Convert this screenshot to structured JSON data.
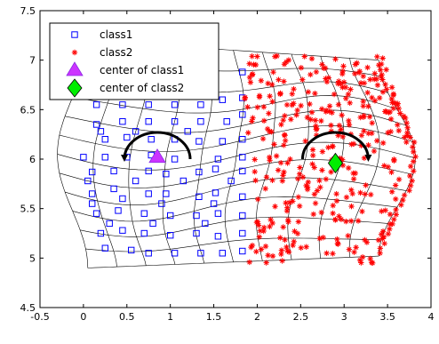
{
  "chart_data": {
    "type": "scatter",
    "title": "",
    "xlabel": "",
    "ylabel": "",
    "xlim": [
      -0.5,
      4
    ],
    "ylim": [
      4.5,
      7.5
    ],
    "xticks": [
      "-0.5",
      "0",
      "0.5",
      "1",
      "1.5",
      "2",
      "2.5",
      "3",
      "3.5",
      "4"
    ],
    "yticks": [
      "4.5",
      "5",
      "5.5",
      "6",
      "6.5",
      "7",
      "7.5"
    ],
    "legend_position": "top-left",
    "legend": [
      {
        "label": "class1",
        "marker": "square",
        "color": "#0000ff"
      },
      {
        "label": "class2",
        "marker": "asterisk",
        "color": "#ff0000"
      },
      {
        "label": "center of class1",
        "marker": "triangle",
        "color": "#cc33ff"
      },
      {
        "label": "center of class2",
        "marker": "diamond",
        "color": "#00ee00"
      }
    ],
    "centers": {
      "class1": {
        "x": 0.85,
        "y": 6.02
      },
      "class2": {
        "x": 2.9,
        "y": 5.96
      }
    },
    "rotation_arrows": [
      {
        "cx": 0.85,
        "direction": "counterclockwise"
      },
      {
        "cx": 2.9,
        "direction": "clockwise"
      }
    ],
    "deformed_grid": true,
    "class1_points": [
      [
        0.1,
        5.87
      ],
      [
        0.35,
        5.88
      ],
      [
        0.75,
        5.88
      ],
      [
        0.95,
        5.85
      ],
      [
        1.33,
        5.87
      ],
      [
        1.52,
        5.9
      ],
      [
        1.83,
        5.88
      ],
      [
        0.1,
        5.65
      ],
      [
        0.35,
        5.7
      ],
      [
        0.75,
        5.65
      ],
      [
        0.95,
        5.65
      ],
      [
        1.33,
        5.62
      ],
      [
        1.52,
        5.66
      ],
      [
        1.83,
        5.62
      ],
      [
        0.15,
        5.45
      ],
      [
        0.4,
        5.48
      ],
      [
        0.7,
        5.45
      ],
      [
        1.0,
        5.43
      ],
      [
        1.3,
        5.43
      ],
      [
        1.55,
        5.45
      ],
      [
        1.83,
        5.43
      ],
      [
        0.2,
        5.25
      ],
      [
        0.45,
        5.28
      ],
      [
        0.7,
        5.25
      ],
      [
        1.0,
        5.23
      ],
      [
        1.3,
        5.25
      ],
      [
        1.55,
        5.22
      ],
      [
        1.83,
        5.25
      ],
      [
        0.25,
        5.1
      ],
      [
        0.55,
        5.08
      ],
      [
        0.75,
        5.05
      ],
      [
        1.05,
        5.05
      ],
      [
        1.35,
        5.05
      ],
      [
        1.6,
        5.05
      ],
      [
        1.83,
        5.07
      ],
      [
        0.15,
        6.35
      ],
      [
        0.45,
        6.38
      ],
      [
        0.75,
        6.38
      ],
      [
        1.05,
        6.38
      ],
      [
        1.35,
        6.38
      ],
      [
        1.65,
        6.38
      ],
      [
        1.83,
        6.45
      ],
      [
        0.15,
        6.55
      ],
      [
        0.45,
        6.55
      ],
      [
        0.75,
        6.55
      ],
      [
        1.05,
        6.55
      ],
      [
        1.35,
        6.55
      ],
      [
        1.6,
        6.6
      ],
      [
        1.83,
        6.62
      ],
      [
        0.25,
        6.68
      ],
      [
        0.55,
        6.72
      ],
      [
        0.85,
        6.75
      ],
      [
        1.1,
        6.76
      ],
      [
        1.4,
        6.8
      ],
      [
        1.83,
        6.88
      ],
      [
        0.25,
        6.2
      ],
      [
        0.5,
        6.22
      ],
      [
        0.78,
        6.2
      ],
      [
        1.05,
        6.2
      ],
      [
        1.33,
        6.18
      ],
      [
        1.6,
        6.18
      ],
      [
        1.83,
        6.2
      ],
      [
        0.0,
        6.02
      ],
      [
        0.25,
        6.02
      ],
      [
        0.5,
        6.02
      ],
      [
        0.78,
        6.04
      ],
      [
        1.05,
        6.0
      ],
      [
        1.55,
        6.0
      ],
      [
        1.83,
        6.02
      ],
      [
        0.1,
        5.55
      ],
      [
        0.45,
        5.6
      ],
      [
        0.9,
        5.55
      ],
      [
        1.5,
        5.55
      ],
      [
        0.2,
        6.28
      ],
      [
        0.6,
        6.28
      ],
      [
        1.2,
        6.28
      ],
      [
        0.3,
        5.35
      ],
      [
        0.8,
        5.35
      ],
      [
        1.4,
        5.35
      ],
      [
        0.05,
        5.78
      ],
      [
        0.6,
        5.78
      ],
      [
        1.15,
        5.78
      ],
      [
        1.7,
        5.78
      ]
    ]
  }
}
